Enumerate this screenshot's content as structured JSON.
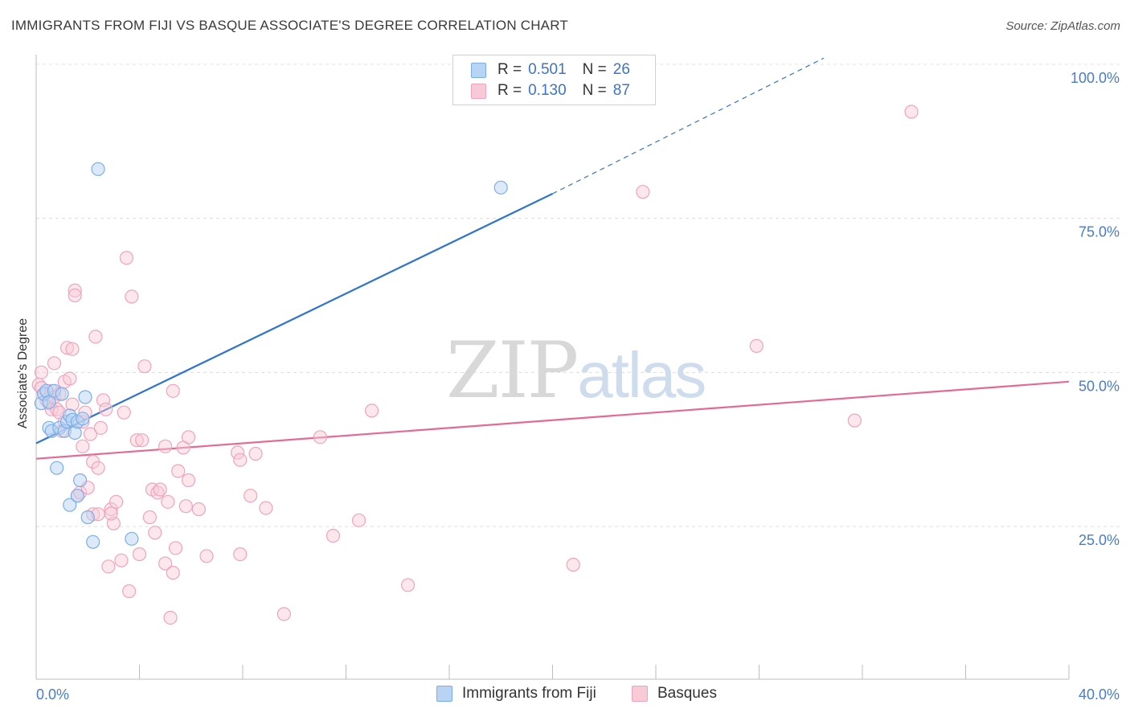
{
  "title": "IMMIGRANTS FROM FIJI VS BASQUE ASSOCIATE'S DEGREE CORRELATION CHART",
  "source": "Source: ZipAtlas.com",
  "watermark": {
    "part1": "ZIP",
    "part2": "atlas"
  },
  "colors": {
    "fiji": "#7aaee8",
    "fiji_fill": "#b8d3f3",
    "fiji_line": "#2f74cf",
    "basque": "#f0a3bc",
    "basque_fill": "#f8cad8",
    "basque_line": "#e46a93",
    "axis_text": "#4a7cc9",
    "grid": "#dcdcdc"
  },
  "legend": {
    "rows": [
      {
        "r_label": "R =",
        "r_value": "0.501",
        "n_label": "N =",
        "n_value": "26"
      },
      {
        "r_label": "R =",
        "r_value": "0.130",
        "n_label": "N =",
        "n_value": "87"
      }
    ]
  },
  "bottom_legend": {
    "fiji": "Immigrants from Fiji",
    "basque": "Basques"
  },
  "chart_data": {
    "type": "scatter",
    "title": "IMMIGRANTS FROM FIJI VS BASQUE ASSOCIATE'S DEGREE CORRELATION CHART",
    "xlabel": "",
    "ylabel": "Associate's Degree",
    "xlim": [
      0,
      40
    ],
    "ylim": [
      0,
      105
    ],
    "x_tick_labels": [
      "0.0%",
      "40.0%"
    ],
    "y_ticks": [
      25,
      50,
      75,
      100
    ],
    "y_tick_labels": [
      "25.0%",
      "50.0%",
      "75.0%",
      "100.0%"
    ],
    "grid": true,
    "series": [
      {
        "name": "Immigrants from Fiji",
        "R": 0.501,
        "N": 26,
        "trend": {
          "x0": 0,
          "y0": 38.5,
          "x1": 20,
          "y1": 79,
          "dashed_to_x": 30.5,
          "dashed_to_y": 101
        },
        "points": [
          [
            0.2,
            45
          ],
          [
            0.3,
            46.5
          ],
          [
            0.4,
            47
          ],
          [
            0.5,
            41
          ],
          [
            0.5,
            45.2
          ],
          [
            0.6,
            40.5
          ],
          [
            0.7,
            47
          ],
          [
            0.8,
            34.5
          ],
          [
            0.9,
            41
          ],
          [
            1.0,
            46.5
          ],
          [
            1.1,
            40.5
          ],
          [
            1.2,
            42
          ],
          [
            1.3,
            43
          ],
          [
            1.3,
            28.5
          ],
          [
            1.4,
            42.3
          ],
          [
            1.5,
            40.2
          ],
          [
            1.6,
            42
          ],
          [
            1.6,
            30
          ],
          [
            1.7,
            32.5
          ],
          [
            1.8,
            42.5
          ],
          [
            1.9,
            46
          ],
          [
            2.0,
            26.5
          ],
          [
            2.2,
            22.5
          ],
          [
            2.4,
            83
          ],
          [
            3.7,
            23
          ],
          [
            18.0,
            80
          ]
        ]
      },
      {
        "name": "Basques",
        "R": 0.13,
        "N": 87,
        "trend": {
          "x0": 0,
          "y0": 36,
          "x1": 40,
          "y1": 48.5
        },
        "points": [
          [
            0.1,
            48
          ],
          [
            0.2,
            50
          ],
          [
            0.2,
            47.5
          ],
          [
            0.3,
            46.5
          ],
          [
            0.4,
            45.5
          ],
          [
            0.5,
            45
          ],
          [
            0.6,
            44
          ],
          [
            0.6,
            47
          ],
          [
            0.7,
            46
          ],
          [
            0.7,
            51.5
          ],
          [
            0.8,
            44
          ],
          [
            0.9,
            43.5
          ],
          [
            0.9,
            46.5
          ],
          [
            1.0,
            40.5
          ],
          [
            1.1,
            48.5
          ],
          [
            1.1,
            42
          ],
          [
            1.2,
            54
          ],
          [
            1.3,
            49
          ],
          [
            1.4,
            44.8
          ],
          [
            1.4,
            53.8
          ],
          [
            1.5,
            63.3
          ],
          [
            1.5,
            62.5
          ],
          [
            1.6,
            30
          ],
          [
            1.7,
            30.5
          ],
          [
            1.8,
            42
          ],
          [
            1.8,
            38
          ],
          [
            1.9,
            43.5
          ],
          [
            2.0,
            31.3
          ],
          [
            2.1,
            40
          ],
          [
            2.2,
            27
          ],
          [
            2.2,
            35.5
          ],
          [
            2.3,
            55.8
          ],
          [
            2.4,
            27
          ],
          [
            2.4,
            34.5
          ],
          [
            2.5,
            41
          ],
          [
            2.6,
            45.5
          ],
          [
            2.7,
            44
          ],
          [
            2.8,
            18.5
          ],
          [
            2.9,
            27.8
          ],
          [
            3.0,
            25.5
          ],
          [
            3.1,
            29
          ],
          [
            3.3,
            19.5
          ],
          [
            3.4,
            43.5
          ],
          [
            3.5,
            68.6
          ],
          [
            3.6,
            14.5
          ],
          [
            3.7,
            62.3
          ],
          [
            3.9,
            39
          ],
          [
            4.0,
            20.5
          ],
          [
            4.1,
            39
          ],
          [
            4.2,
            51
          ],
          [
            4.4,
            26.5
          ],
          [
            4.5,
            31
          ],
          [
            4.6,
            24
          ],
          [
            4.7,
            30.5
          ],
          [
            4.8,
            31
          ],
          [
            5.0,
            38
          ],
          [
            5.0,
            19
          ],
          [
            5.1,
            29
          ],
          [
            5.2,
            10.2
          ],
          [
            5.3,
            47
          ],
          [
            5.3,
            17.5
          ],
          [
            5.4,
            21.5
          ],
          [
            5.5,
            34
          ],
          [
            5.7,
            37.8
          ],
          [
            5.8,
            28.3
          ],
          [
            5.9,
            39.5
          ],
          [
            5.9,
            32.5
          ],
          [
            6.3,
            27.8
          ],
          [
            6.6,
            20.2
          ],
          [
            7.8,
            37
          ],
          [
            7.9,
            35.8
          ],
          [
            7.9,
            20.5
          ],
          [
            8.3,
            30
          ],
          [
            8.5,
            36.8
          ],
          [
            8.9,
            28
          ],
          [
            9.6,
            10.8
          ],
          [
            11.0,
            39.5
          ],
          [
            11.5,
            23.5
          ],
          [
            12.5,
            26
          ],
          [
            13.0,
            43.8
          ],
          [
            14.4,
            15.5
          ],
          [
            20.8,
            18.8
          ],
          [
            23.5,
            79.3
          ],
          [
            27.9,
            54.3
          ],
          [
            31.7,
            42.2
          ],
          [
            33.9,
            92.3
          ],
          [
            2.9,
            27.1
          ]
        ]
      }
    ]
  }
}
